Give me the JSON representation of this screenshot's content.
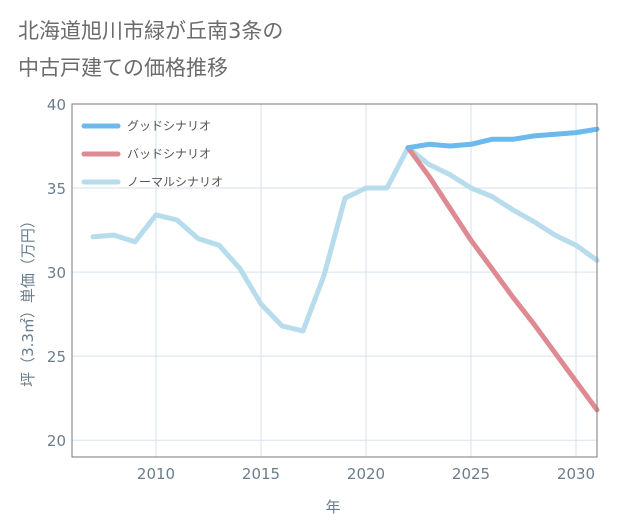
{
  "title_lines": [
    "北海道旭川市緑が丘南3条の",
    "中古戸建ての価格推移"
  ],
  "colors": {
    "good": "#6cb9ee",
    "bad": "#de8a92",
    "normal": "#b7dcec",
    "grid": "#d6e3ec",
    "frame": "#7a7a7a",
    "text": "#6b6b6b"
  },
  "chart_data": {
    "type": "line",
    "title": "北海道旭川市緑が丘南3条の中古戸建ての価格推移",
    "xlabel": "年",
    "ylabel": "坪（3.3㎡）単価（万円）",
    "xlim": [
      2006,
      2031
    ],
    "ylim": [
      19,
      40
    ],
    "xticks": [
      2010,
      2015,
      2020,
      2025,
      2030
    ],
    "yticks": [
      20,
      25,
      30,
      35,
      40
    ],
    "grid": true,
    "legend_position": "top-left",
    "series": [
      {
        "name": "グッドシナリオ",
        "color_key": "good",
        "x": [
          2022,
          2023,
          2024,
          2025,
          2026,
          2027,
          2028,
          2029,
          2030,
          2031
        ],
        "y": [
          37.4,
          37.6,
          37.5,
          37.6,
          37.9,
          37.9,
          38.1,
          38.2,
          38.3,
          38.5
        ]
      },
      {
        "name": "バッドシナリオ",
        "color_key": "bad",
        "x": [
          2022,
          2023,
          2024,
          2025,
          2026,
          2027,
          2028,
          2029,
          2030,
          2031
        ],
        "y": [
          37.4,
          35.7,
          33.8,
          31.9,
          30.2,
          28.5,
          26.9,
          25.2,
          23.5,
          21.8
        ]
      },
      {
        "name": "ノーマルシナリオ",
        "color_key": "normal",
        "x": [
          2007,
          2008,
          2009,
          2010,
          2011,
          2012,
          2013,
          2014,
          2015,
          2016,
          2017,
          2018,
          2019,
          2020,
          2021,
          2022,
          2023,
          2024,
          2025,
          2026,
          2027,
          2028,
          2029,
          2030,
          2031
        ],
        "y": [
          32.1,
          32.2,
          31.8,
          33.4,
          33.1,
          32.0,
          31.6,
          30.2,
          28.1,
          26.8,
          26.5,
          29.8,
          34.4,
          35.0,
          35.0,
          37.4,
          36.4,
          35.8,
          35.0,
          34.5,
          33.7,
          33.0,
          32.2,
          31.6,
          30.7
        ]
      }
    ]
  }
}
